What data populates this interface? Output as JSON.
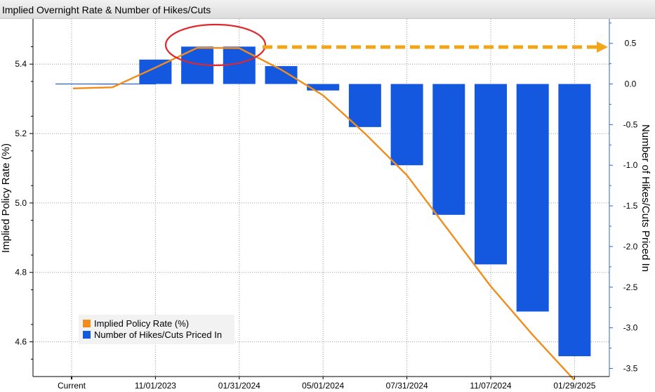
{
  "chart_data": {
    "type": "bar",
    "title": "Implied Overnight Rate & Number of Hikes/Cuts",
    "x_labels": [
      "Current",
      "11/01/2023",
      "01/31/2024",
      "05/01/2024",
      "07/31/2024",
      "11/07/2024",
      "01/29/2025"
    ],
    "y_left": {
      "label": "Implied Policy Rate (%)",
      "ylim": [
        4.5,
        5.53
      ],
      "ticks": [
        4.6,
        4.8,
        5.0,
        5.2,
        5.4
      ]
    },
    "y_right": {
      "label": "Number of Hikes/Cuts Priced In",
      "ylim": [
        -3.6,
        0.8
      ],
      "ticks": [
        "0.5",
        "0.0",
        "-0.5",
        "-1.0",
        "-1.5",
        "-2.0",
        "-2.5",
        "-3.0",
        "-3.5"
      ]
    },
    "series": [
      {
        "name": "Implied Policy Rate (%)",
        "type": "line",
        "axis": "left",
        "color": "#f28c1a",
        "values": [
          5.33,
          5.333,
          5.39,
          5.447,
          5.446,
          5.384,
          5.31,
          5.2,
          5.08,
          4.92,
          4.76,
          4.62,
          4.49
        ]
      },
      {
        "name": "Number of Hikes/Cuts Priced In",
        "type": "bar",
        "axis": "right",
        "color": "#1458e0",
        "values": [
          0.0,
          0.0,
          0.3,
          0.46,
          0.46,
          0.22,
          -0.08,
          -0.53,
          -1.0,
          -1.61,
          -2.22,
          -2.8,
          -3.35
        ]
      }
    ],
    "legend_position": "bottom-left",
    "grid": true
  },
  "colors": {
    "annotation_ellipse": "#e0282a",
    "annotation_arrow": "#f2a516",
    "axis": "#000000",
    "grid": "#9a9a9a"
  }
}
